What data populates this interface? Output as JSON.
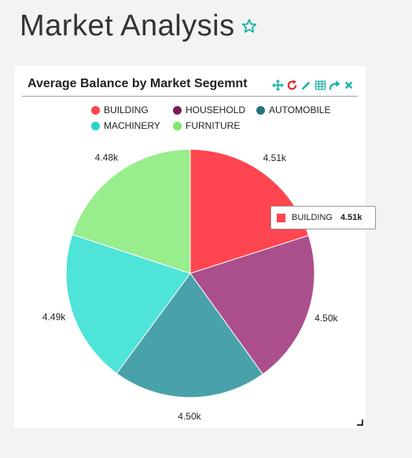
{
  "page": {
    "title": "Market Analysis"
  },
  "widget": {
    "title": "Average Balance by Market Segemnt",
    "tools": [
      "move-icon",
      "refresh-icon",
      "edit-icon",
      "table-icon",
      "share-icon",
      "close-icon"
    ]
  },
  "legend": [
    "BUILDING",
    "HOUSEHOLD",
    "AUTOMOBILE",
    "MACHINERY",
    "FURNITURE"
  ],
  "tooltip": {
    "label": "BUILDING",
    "value": "4.51k"
  },
  "chart_data": {
    "type": "pie",
    "categories": [
      "BUILDING",
      "HOUSEHOLD",
      "AUTOMOBILE",
      "MACHINERY",
      "FURNITURE"
    ],
    "values": [
      4.51,
      4.5,
      4.5,
      4.49,
      4.48
    ],
    "labels": [
      "4.51k",
      "4.50k",
      "4.50k",
      "4.49k",
      "4.48k"
    ],
    "colors": [
      "#ff4550",
      "#ab4f8c",
      "#49a2aa",
      "#4ee4d8",
      "#98ed8c"
    ],
    "legend_markers": [
      "#ff4550",
      "#7b1d57",
      "#26737c",
      "#2ad3c7",
      "#7be86c"
    ],
    "highlighted": "BUILDING"
  }
}
